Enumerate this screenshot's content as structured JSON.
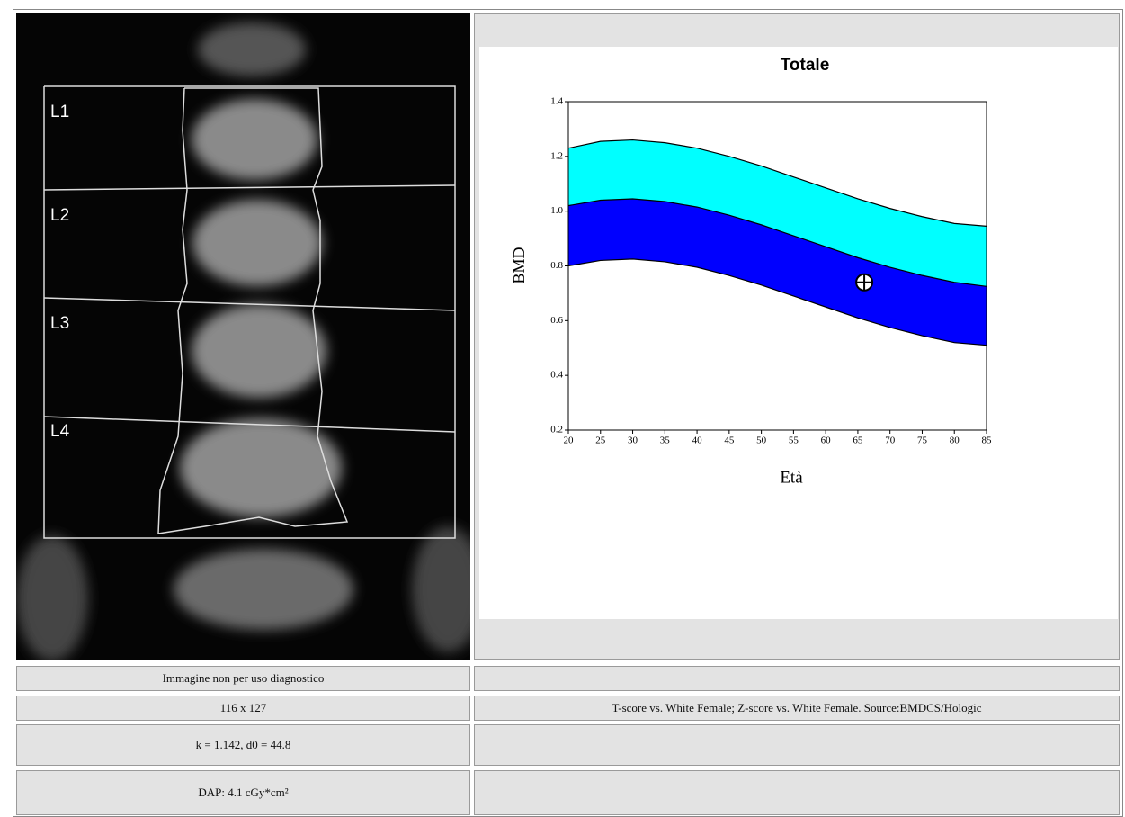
{
  "image": {
    "labels": [
      "L1",
      "L2",
      "L3",
      "L4"
    ]
  },
  "chart_data": {
    "type": "band",
    "title": "Totale",
    "xlabel": "Età",
    "ylabel": "BMD",
    "x": [
      20,
      25,
      30,
      35,
      40,
      45,
      50,
      55,
      60,
      65,
      70,
      75,
      80,
      85
    ],
    "series": [
      {
        "values": [
          1.23,
          1.255,
          1.26,
          1.25,
          1.23,
          1.2,
          1.165,
          1.125,
          1.085,
          1.045,
          1.01,
          0.98,
          0.955,
          0.945
        ]
      },
      {
        "values": [
          1.02,
          1.04,
          1.045,
          1.035,
          1.015,
          0.985,
          0.95,
          0.91,
          0.87,
          0.83,
          0.795,
          0.765,
          0.74,
          0.725
        ]
      },
      {
        "values": [
          0.8,
          0.82,
          0.825,
          0.815,
          0.795,
          0.765,
          0.73,
          0.69,
          0.65,
          0.61,
          0.575,
          0.545,
          0.52,
          0.51
        ]
      }
    ],
    "band_colors": [
      "#00ffff",
      "#0000ff"
    ],
    "line_color": "#000000",
    "point": {
      "x": 66,
      "y": 0.74
    },
    "xlim": [
      20,
      85
    ],
    "xticks": [
      20,
      25,
      30,
      35,
      40,
      45,
      50,
      55,
      60,
      65,
      70,
      75,
      80,
      85
    ],
    "ylim": [
      0.2,
      1.4
    ],
    "yticks": [
      0.2,
      0.4,
      0.6,
      0.8,
      {
        "value": 1,
        "label": "1.0"
      },
      1.2,
      1.4
    ]
  },
  "table": {
    "left": [
      "Immagine non per uso diagnostico",
      "116 x 127",
      "k = 1.142, d0 = 44.8",
      "DAP: 4.1 cGy*cm²"
    ],
    "right": [
      "T-score vs. White Female; Z-score vs. White Female. Source:BMDCS/Hologic"
    ]
  }
}
